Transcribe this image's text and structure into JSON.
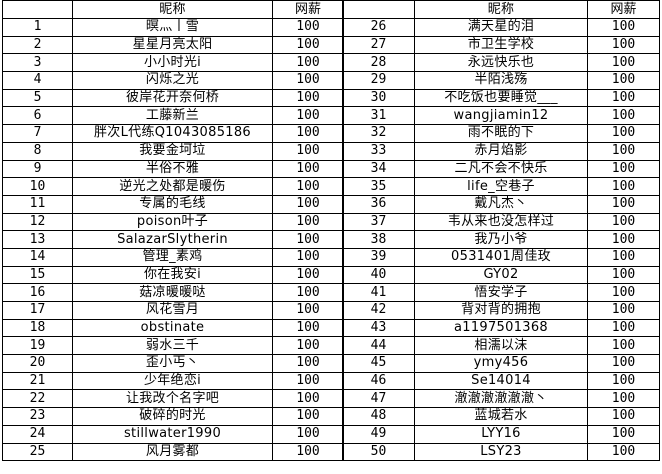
{
  "headers": {
    "rank": "",
    "nickname": "昵称",
    "salary": "网薪"
  },
  "left": [
    [
      "1",
      "暝灬丨雪",
      "100"
    ],
    [
      "2",
      "星星月亮太阳",
      "100"
    ],
    [
      "3",
      "小小时光i",
      "100"
    ],
    [
      "4",
      "闪烁之光",
      "100"
    ],
    [
      "5",
      "彼岸花开奈何桥",
      "100"
    ],
    [
      "6",
      "工藤新兰",
      "100"
    ],
    [
      "7",
      "胖次L代练Q1043085186",
      "100"
    ],
    [
      "8",
      "我要金坷垃",
      "100"
    ],
    [
      "9",
      "半俗不雅",
      "100"
    ],
    [
      "10",
      "逆光之处都是暖伤",
      "100"
    ],
    [
      "11",
      "专属的毛线",
      "100"
    ],
    [
      "12",
      "poison叶子",
      "100"
    ],
    [
      "13",
      "SalazarSlytherin",
      "100"
    ],
    [
      "14",
      "管理_素鸡",
      "100"
    ],
    [
      "15",
      "你在我安i",
      "100"
    ],
    [
      "16",
      "菇凉暖暖哒",
      "100"
    ],
    [
      "17",
      "风花雪月",
      "100"
    ],
    [
      "18",
      "obstinate",
      "100"
    ],
    [
      "19",
      "弱水三千",
      "100"
    ],
    [
      "20",
      "歪小丐丶",
      "100"
    ],
    [
      "21",
      "少年绝恋i",
      "100"
    ],
    [
      "22",
      "让我改个名字吧",
      "100"
    ],
    [
      "23",
      "破碎的时光",
      "100"
    ],
    [
      "24",
      "stillwater1990",
      "100"
    ],
    [
      "25",
      "风月雾都",
      "100"
    ]
  ],
  "right": [
    [
      "26",
      "满天星的泪",
      "100"
    ],
    [
      "27",
      "市卫生学校",
      "100"
    ],
    [
      "28",
      "永远快乐也",
      "100"
    ],
    [
      "29",
      "半陌浅殇",
      "100"
    ],
    [
      "30",
      "不吃饭也要睡觉___",
      "100"
    ],
    [
      "31",
      "wangjiamin12",
      "100"
    ],
    [
      "32",
      "雨不眠的下",
      "100"
    ],
    [
      "33",
      "赤月焰影",
      "100"
    ],
    [
      "34",
      "二凡不会不快乐",
      "100"
    ],
    [
      "35",
      "life_空巷子",
      "100"
    ],
    [
      "36",
      "戴凡杰丶",
      "100"
    ],
    [
      "37",
      "韦从来也没怎样过",
      "100"
    ],
    [
      "38",
      "我乃小爷",
      "100"
    ],
    [
      "39",
      "0531401周佳玫",
      "100"
    ],
    [
      "40",
      "GY02",
      "100"
    ],
    [
      "41",
      "悟安学子",
      "100"
    ],
    [
      "42",
      "背对背的拥抱",
      "100"
    ],
    [
      "43",
      "a1197501368",
      "100"
    ],
    [
      "44",
      "相濡以沫",
      "100"
    ],
    [
      "45",
      "ymy456",
      "100"
    ],
    [
      "46",
      "Se14014",
      "100"
    ],
    [
      "47",
      "澈澈澈澈澈澈丶",
      "100"
    ],
    [
      "48",
      "蓝城若水",
      "100"
    ],
    [
      "49",
      "LYY16",
      "100"
    ],
    [
      "50",
      "LSY23",
      "100"
    ]
  ]
}
